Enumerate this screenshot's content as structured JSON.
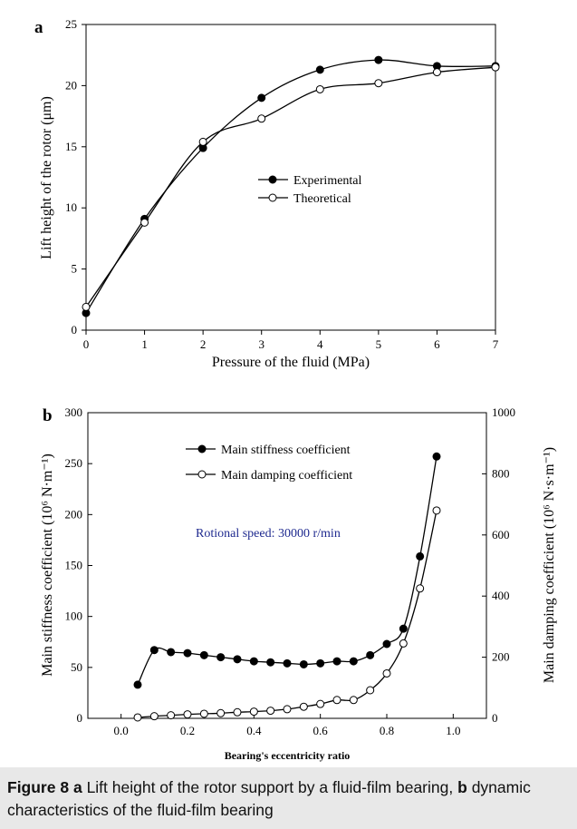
{
  "caption": {
    "label": "Figure 8",
    "part_a_letter": "a",
    "part_a_text": "Lift height of the rotor support by a fluid-film bearing,",
    "part_b_letter": "b",
    "part_b_text": "dynamic characteristics of the fluid-film bearing"
  },
  "chart_data": [
    {
      "type": "line",
      "panel": "a",
      "xlabel": "Pressure of the fluid (MPa)",
      "ylabel": "Lift height of the rotor (μm)",
      "xlim": [
        0,
        7
      ],
      "ylim": [
        0,
        25
      ],
      "xticks": [
        0,
        1,
        2,
        3,
        4,
        5,
        6,
        7
      ],
      "yticks": [
        0,
        5,
        10,
        15,
        20,
        25
      ],
      "legend_position": "center-right",
      "grid": false,
      "series": [
        {
          "name": "Experimental",
          "marker": "filled-circle",
          "x": [
            0,
            1,
            2,
            3,
            4,
            5,
            6,
            7
          ],
          "y": [
            1.4,
            9.1,
            14.9,
            19.0,
            21.3,
            22.1,
            21.6,
            21.6
          ]
        },
        {
          "name": "Theoretical",
          "marker": "open-circle",
          "x": [
            0,
            1,
            2,
            3,
            4,
            5,
            6,
            7
          ],
          "y": [
            1.9,
            8.8,
            15.4,
            17.3,
            19.7,
            20.2,
            21.1,
            21.5
          ]
        }
      ]
    },
    {
      "type": "line",
      "panel": "b",
      "xlabel": "Bearing's eccentricity ratio",
      "ylabel": "Main stiffness coefficient (10⁶ N·m⁻¹)",
      "y2label": "Main damping coefficient (10⁶ N·s·m⁻¹)",
      "xlim": [
        -0.1,
        1.1
      ],
      "ylim": [
        0,
        300
      ],
      "y2lim": [
        0,
        1000
      ],
      "xticks": [
        0.0,
        0.2,
        0.4,
        0.6,
        0.8,
        1.0
      ],
      "xtick_labels": [
        "0.0",
        "0.2",
        "0.4",
        "0.6",
        "0.8",
        "1.0"
      ],
      "yticks": [
        0,
        50,
        100,
        150,
        200,
        250,
        300
      ],
      "y2ticks": [
        0,
        200,
        400,
        600,
        800,
        1000
      ],
      "annotation": "Rotional speed: 30000 r/min",
      "legend_position": "top-center",
      "grid": false,
      "series": [
        {
          "name": "Main stiffness coefficient",
          "axis": "left",
          "marker": "filled-circle",
          "x": [
            0.05,
            0.1,
            0.15,
            0.2,
            0.25,
            0.3,
            0.35,
            0.4,
            0.45,
            0.5,
            0.55,
            0.6,
            0.65,
            0.7,
            0.75,
            0.8,
            0.85,
            0.9,
            0.95
          ],
          "y": [
            33,
            67,
            65,
            64,
            62,
            60,
            58,
            56,
            55,
            54,
            53,
            54,
            56,
            56,
            62,
            73,
            88,
            159,
            257
          ]
        },
        {
          "name": "Main damping coefficient",
          "axis": "right",
          "marker": "open-circle",
          "x": [
            0.05,
            0.1,
            0.15,
            0.2,
            0.25,
            0.3,
            0.35,
            0.4,
            0.45,
            0.5,
            0.55,
            0.6,
            0.65,
            0.7,
            0.75,
            0.8,
            0.85,
            0.9,
            0.95
          ],
          "y": [
            3,
            7,
            10,
            13,
            15,
            17,
            20,
            22,
            25,
            30,
            38,
            47,
            60,
            60,
            92,
            147,
            245,
            425,
            680
          ]
        }
      ]
    }
  ]
}
